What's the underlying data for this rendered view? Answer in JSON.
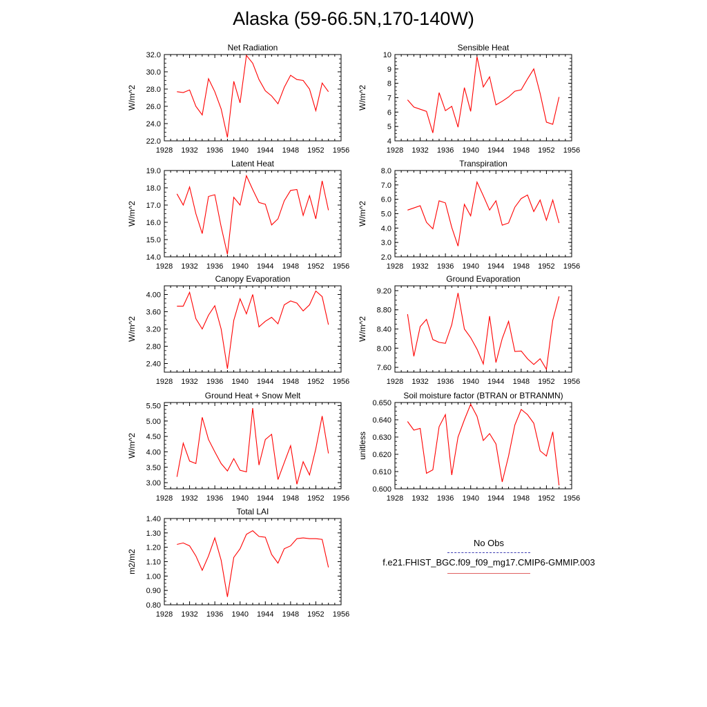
{
  "title": "Alaska (59-66.5N,170-140W)",
  "legend": {
    "obs_label": "No Obs",
    "obs_color": "#3a3ab0",
    "model_label": "f.e21.FHIST_BGC.f09_f09_mg17.CMIP6-GMMIP.003",
    "model_color": "#ff0000"
  },
  "chart_data": [
    {
      "type": "line",
      "title": "Net Radiation",
      "ylabel": "W/m^2",
      "xlim": [
        1928,
        1956
      ],
      "xticks": [
        "1928",
        "1932",
        "1936",
        "1940",
        "1944",
        "1948",
        "1952",
        "1956"
      ],
      "ylim": [
        22.0,
        32.0
      ],
      "yticks": [
        "22.0",
        "24.0",
        "26.0",
        "28.0",
        "30.0",
        "32.0"
      ],
      "x": [
        1930,
        1931,
        1932,
        1933,
        1934,
        1935,
        1936,
        1937,
        1938,
        1939,
        1940,
        1941,
        1942,
        1943,
        1944,
        1945,
        1946,
        1947,
        1948,
        1949,
        1950,
        1951,
        1952,
        1953,
        1954
      ],
      "values": [
        27.7,
        27.6,
        27.9,
        26.0,
        25.0,
        29.2,
        27.7,
        25.7,
        22.4,
        28.9,
        26.4,
        31.9,
        31.0,
        29.1,
        27.8,
        27.2,
        26.3,
        28.2,
        29.6,
        29.1,
        29.0,
        28.0,
        25.5,
        28.7,
        27.7
      ]
    },
    {
      "type": "line",
      "title": "Sensible Heat",
      "ylabel": "W/m^2",
      "xlim": [
        1928,
        1956
      ],
      "xticks": [
        "1928",
        "1932",
        "1936",
        "1940",
        "1944",
        "1948",
        "1952",
        "1956"
      ],
      "ylim": [
        4,
        10
      ],
      "yticks": [
        "4",
        "5",
        "6",
        "7",
        "8",
        "9",
        "10"
      ],
      "x": [
        1930,
        1931,
        1932,
        1933,
        1934,
        1935,
        1936,
        1937,
        1938,
        1939,
        1940,
        1941,
        1942,
        1943,
        1944,
        1945,
        1946,
        1947,
        1948,
        1949,
        1950,
        1951,
        1952,
        1953,
        1954
      ],
      "values": [
        6.85,
        6.35,
        6.2,
        6.05,
        4.55,
        7.35,
        6.1,
        6.4,
        4.95,
        7.7,
        6.05,
        9.85,
        7.75,
        8.45,
        6.5,
        6.75,
        7.05,
        7.45,
        7.55,
        8.3,
        9.0,
        7.3,
        5.3,
        5.15,
        7.05
      ]
    },
    {
      "type": "line",
      "title": "Latent Heat",
      "ylabel": "W/m^2",
      "xlim": [
        1928,
        1956
      ],
      "xticks": [
        "1928",
        "1932",
        "1936",
        "1940",
        "1944",
        "1948",
        "1952",
        "1956"
      ],
      "ylim": [
        14.0,
        19.0
      ],
      "yticks": [
        "14.0",
        "15.0",
        "16.0",
        "17.0",
        "18.0",
        "19.0"
      ],
      "x": [
        1930,
        1931,
        1932,
        1933,
        1934,
        1935,
        1936,
        1937,
        1938,
        1939,
        1940,
        1941,
        1942,
        1943,
        1944,
        1945,
        1946,
        1947,
        1948,
        1949,
        1950,
        1951,
        1952,
        1953,
        1954
      ],
      "values": [
        17.65,
        17.0,
        18.05,
        16.5,
        15.35,
        17.5,
        17.6,
        15.75,
        14.15,
        17.45,
        17.0,
        18.7,
        17.9,
        17.15,
        17.05,
        15.85,
        16.2,
        17.25,
        17.85,
        17.9,
        16.4,
        17.55,
        16.2,
        18.4,
        16.7
      ]
    },
    {
      "type": "line",
      "title": "Transpiration",
      "ylabel": "W/m^2",
      "xlim": [
        1928,
        1956
      ],
      "xticks": [
        "1928",
        "1932",
        "1936",
        "1940",
        "1944",
        "1948",
        "1952",
        "1956"
      ],
      "ylim": [
        2.0,
        8.0
      ],
      "yticks": [
        "2.0",
        "3.0",
        "4.0",
        "5.0",
        "6.0",
        "7.0",
        "8.0"
      ],
      "x": [
        1930,
        1931,
        1932,
        1933,
        1934,
        1935,
        1936,
        1937,
        1938,
        1939,
        1940,
        1941,
        1942,
        1943,
        1944,
        1945,
        1946,
        1947,
        1948,
        1949,
        1950,
        1951,
        1952,
        1953,
        1954
      ],
      "values": [
        5.25,
        5.4,
        5.55,
        4.4,
        3.95,
        5.9,
        5.75,
        4.05,
        2.75,
        5.65,
        4.85,
        7.2,
        6.25,
        5.25,
        5.9,
        4.2,
        4.35,
        5.45,
        6.05,
        6.3,
        5.15,
        5.95,
        4.55,
        5.95,
        4.35
      ]
    },
    {
      "type": "line",
      "title": "Canopy Evaporation",
      "ylabel": "W/m^2",
      "xlim": [
        1928,
        1956
      ],
      "xticks": [
        "1928",
        "1932",
        "1936",
        "1940",
        "1944",
        "1948",
        "1952",
        "1956"
      ],
      "ylim": [
        2.2,
        4.2
      ],
      "yticks": [
        "2.40",
        "2.80",
        "3.20",
        "3.60",
        "4.00"
      ],
      "x": [
        1930,
        1931,
        1932,
        1933,
        1934,
        1935,
        1936,
        1937,
        1938,
        1939,
        1940,
        1941,
        1942,
        1943,
        1944,
        1945,
        1946,
        1947,
        1948,
        1949,
        1950,
        1951,
        1952,
        1953,
        1954
      ],
      "values": [
        3.73,
        3.73,
        4.05,
        3.44,
        3.2,
        3.52,
        3.74,
        3.2,
        2.28,
        3.4,
        3.9,
        3.55,
        4.0,
        3.25,
        3.38,
        3.47,
        3.32,
        3.76,
        3.85,
        3.8,
        3.62,
        3.76,
        4.08,
        3.95,
        3.3
      ]
    },
    {
      "type": "line",
      "title": "Ground Evaporation",
      "ylabel": "W/m^2",
      "xlim": [
        1928,
        1956
      ],
      "xticks": [
        "1928",
        "1932",
        "1936",
        "1940",
        "1944",
        "1948",
        "1952",
        "1956"
      ],
      "ylim": [
        7.5,
        9.3
      ],
      "yticks": [
        "7.60",
        "8.00",
        "8.40",
        "8.80",
        "9.20"
      ],
      "x": [
        1930,
        1931,
        1932,
        1933,
        1934,
        1935,
        1936,
        1937,
        1938,
        1939,
        1940,
        1941,
        1942,
        1943,
        1944,
        1945,
        1946,
        1947,
        1948,
        1949,
        1950,
        1951,
        1952,
        1953,
        1954
      ],
      "values": [
        8.71,
        7.83,
        8.45,
        8.6,
        8.18,
        8.12,
        8.1,
        8.49,
        9.15,
        8.4,
        8.22,
        7.98,
        7.67,
        8.67,
        7.7,
        8.2,
        8.56,
        7.93,
        7.94,
        7.78,
        7.66,
        7.78,
        7.56,
        8.58,
        9.08
      ]
    },
    {
      "type": "line",
      "title": "Ground Heat + Snow Melt",
      "ylabel": "W/m^2",
      "xlim": [
        1928,
        1956
      ],
      "xticks": [
        "1928",
        "1932",
        "1936",
        "1940",
        "1944",
        "1948",
        "1952",
        "1956"
      ],
      "ylim": [
        2.8,
        5.6
      ],
      "yticks": [
        "3.00",
        "3.50",
        "4.00",
        "4.50",
        "5.00",
        "5.50"
      ],
      "x": [
        1930,
        1931,
        1932,
        1933,
        1934,
        1935,
        1936,
        1937,
        1938,
        1939,
        1940,
        1941,
        1942,
        1943,
        1944,
        1945,
        1946,
        1947,
        1948,
        1949,
        1950,
        1951,
        1952,
        1953,
        1954
      ],
      "values": [
        3.19,
        4.28,
        3.7,
        3.62,
        5.12,
        4.4,
        4.0,
        3.62,
        3.38,
        3.78,
        3.4,
        3.35,
        5.42,
        3.57,
        4.4,
        4.57,
        3.1,
        3.65,
        4.2,
        2.95,
        3.68,
        3.25,
        4.1,
        5.16,
        3.95
      ]
    },
    {
      "type": "line",
      "title": "Soil moisture factor (BTRAN or BTRANMN)",
      "ylabel": "unitless",
      "xlim": [
        1928,
        1956
      ],
      "xticks": [
        "1928",
        "1932",
        "1936",
        "1940",
        "1944",
        "1948",
        "1952",
        "1956"
      ],
      "ylim": [
        0.6,
        0.65
      ],
      "yticks": [
        "0.600",
        "0.610",
        "0.620",
        "0.630",
        "0.640",
        "0.650"
      ],
      "x": [
        1930,
        1931,
        1932,
        1933,
        1934,
        1935,
        1936,
        1937,
        1938,
        1939,
        1940,
        1941,
        1942,
        1943,
        1944,
        1945,
        1946,
        1947,
        1948,
        1949,
        1950,
        1951,
        1952,
        1953,
        1954
      ],
      "values": [
        0.639,
        0.634,
        0.635,
        0.609,
        0.611,
        0.636,
        0.643,
        0.608,
        0.63,
        0.64,
        0.649,
        0.642,
        0.628,
        0.632,
        0.626,
        0.604,
        0.619,
        0.637,
        0.646,
        0.643,
        0.638,
        0.622,
        0.619,
        0.633,
        0.602
      ]
    },
    {
      "type": "line",
      "title": "Total LAI",
      "ylabel": "m2/m2",
      "xlim": [
        1928,
        1956
      ],
      "xticks": [
        "1928",
        "1932",
        "1936",
        "1940",
        "1944",
        "1948",
        "1952",
        "1956"
      ],
      "ylim": [
        0.8,
        1.4
      ],
      "yticks": [
        "0.80",
        "0.90",
        "1.00",
        "1.10",
        "1.20",
        "1.30",
        "1.40"
      ],
      "x": [
        1930,
        1931,
        1932,
        1933,
        1934,
        1935,
        1936,
        1937,
        1938,
        1939,
        1940,
        1941,
        1942,
        1943,
        1944,
        1945,
        1946,
        1947,
        1948,
        1949,
        1950,
        1951,
        1952,
        1953,
        1954
      ],
      "values": [
        1.22,
        1.23,
        1.21,
        1.14,
        1.04,
        1.14,
        1.265,
        1.11,
        0.855,
        1.13,
        1.19,
        1.29,
        1.315,
        1.275,
        1.27,
        1.15,
        1.09,
        1.19,
        1.21,
        1.26,
        1.265,
        1.26,
        1.26,
        1.255,
        1.06
      ]
    }
  ]
}
